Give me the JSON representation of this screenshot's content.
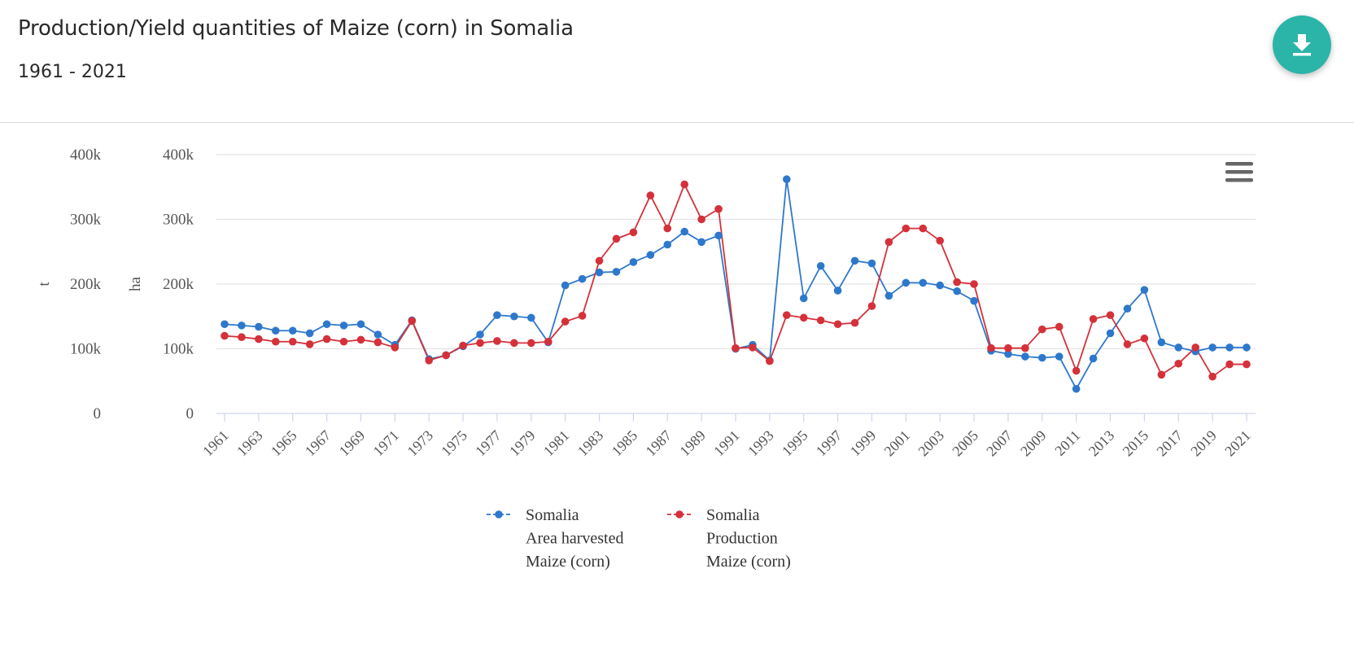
{
  "header": {
    "title": "Production/Yield quantities of Maize (corn) in Somalia",
    "subtitle": "1961 - 2021",
    "download_icon": "download-icon"
  },
  "menu_icon": "hamburger-menu-icon",
  "colors": {
    "area": "#2e78cc",
    "production": "#d4313a",
    "accent": "#2bb5a8"
  },
  "chart_data": {
    "type": "line",
    "x": [
      1961,
      1962,
      1963,
      1964,
      1965,
      1966,
      1967,
      1968,
      1969,
      1970,
      1971,
      1972,
      1973,
      1974,
      1975,
      1976,
      1977,
      1978,
      1979,
      1980,
      1981,
      1982,
      1983,
      1984,
      1985,
      1986,
      1987,
      1988,
      1989,
      1990,
      1991,
      1992,
      1993,
      1994,
      1995,
      1996,
      1997,
      1998,
      1999,
      2000,
      2001,
      2002,
      2003,
      2004,
      2005,
      2006,
      2007,
      2008,
      2009,
      2010,
      2011,
      2012,
      2013,
      2014,
      2015,
      2016,
      2017,
      2018,
      2019,
      2020,
      2021
    ],
    "x_tick_labels": [
      "1961",
      "1963",
      "1965",
      "1967",
      "1969",
      "1971",
      "1973",
      "1975",
      "1977",
      "1979",
      "1981",
      "1983",
      "1985",
      "1987",
      "1989",
      "1991",
      "1993",
      "1995",
      "1997",
      "1999",
      "2001",
      "2003",
      "2005",
      "2007",
      "2009",
      "2011",
      "2013",
      "2015",
      "2017",
      "2019",
      "2021"
    ],
    "y_axes": [
      {
        "label": "t",
        "ticks": [
          "0",
          "100k",
          "200k",
          "300k",
          "400k"
        ],
        "range": [
          0,
          400000
        ]
      },
      {
        "label": "ha",
        "ticks": [
          "0",
          "100k",
          "200k",
          "300k",
          "400k"
        ],
        "range": [
          0,
          400000
        ]
      }
    ],
    "series": [
      {
        "name_lines": [
          "Somalia",
          "Area harvested",
          "Maize (corn)"
        ],
        "color": "#2e78cc",
        "axis": "ha",
        "values": [
          138000,
          136000,
          134000,
          128000,
          128000,
          124000,
          138000,
          136000,
          138000,
          122000,
          106000,
          144000,
          84000,
          90000,
          104000,
          122000,
          152000,
          150000,
          148000,
          110000,
          198000,
          208000,
          218000,
          219000,
          234000,
          245000,
          261000,
          281000,
          265000,
          275000,
          100000,
          106000,
          82000,
          362000,
          178000,
          228000,
          190000,
          236000,
          232000,
          182000,
          202000,
          202000,
          198000,
          189000,
          174000,
          97000,
          92000,
          88000,
          86000,
          88000,
          38000,
          85000,
          124000,
          162000,
          191000,
          110000,
          102000,
          96000,
          102000,
          102000,
          102000
        ]
      },
      {
        "name_lines": [
          "Somalia",
          "Production",
          "Maize (corn)"
        ],
        "color": "#d4313a",
        "axis": "t",
        "values": [
          120000,
          118000,
          115000,
          111000,
          111000,
          107000,
          115000,
          111000,
          114000,
          110000,
          102000,
          143000,
          82000,
          90000,
          105000,
          109000,
          112000,
          109000,
          109000,
          111000,
          142000,
          151000,
          236000,
          270000,
          280000,
          337000,
          286000,
          354000,
          300000,
          316000,
          101000,
          102000,
          81000,
          152000,
          148000,
          144000,
          138000,
          140000,
          166000,
          265000,
          286000,
          286000,
          267000,
          203000,
          200000,
          101000,
          101000,
          101000,
          130000,
          134000,
          66000,
          146000,
          152000,
          107000,
          116000,
          60000,
          77000,
          102000,
          57000,
          76000,
          76000
        ]
      }
    ],
    "legend_position": "bottom-center",
    "grid": true
  }
}
